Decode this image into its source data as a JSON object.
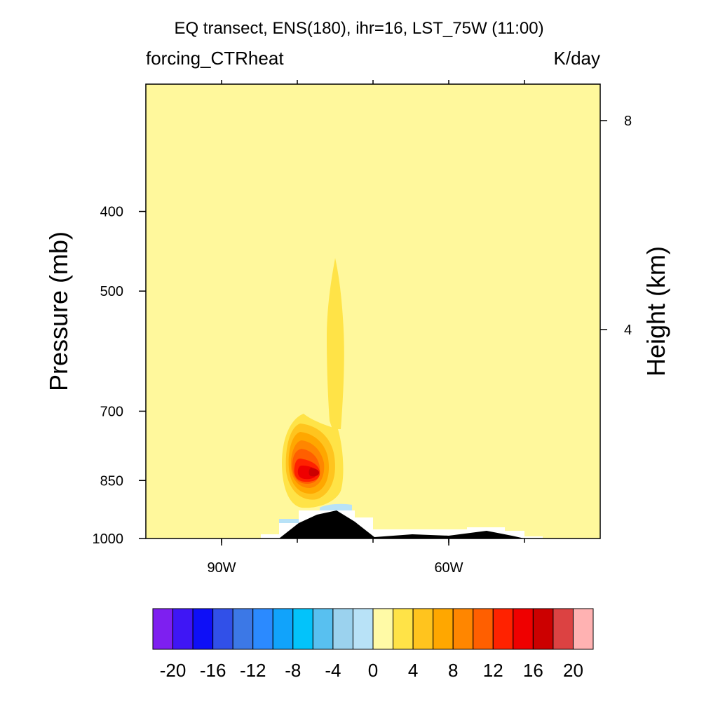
{
  "chart_data": {
    "type": "contour",
    "title": "EQ transect, ENS(180), ihr=16, LST_75W (11:00)",
    "left_subtitle": "forcing_CTRheat",
    "right_subtitle": "K/day",
    "ylabel": "Pressure (mb)",
    "ylabel_right": "Height (km)",
    "y_scale": "log",
    "ylim": [
      1000,
      280
    ],
    "xlim": [
      -100,
      -40
    ],
    "x_ticks": [
      {
        "value": -90,
        "label": "90W"
      },
      {
        "value": -60,
        "label": "60W"
      }
    ],
    "x_minor_ticks": [
      -90,
      -80,
      -70,
      -60,
      -50
    ],
    "y_ticks": [
      {
        "value": 400,
        "label": "400"
      },
      {
        "value": 500,
        "label": "500"
      },
      {
        "value": 700,
        "label": "700"
      },
      {
        "value": 850,
        "label": "850"
      },
      {
        "value": 1000,
        "label": "1000"
      }
    ],
    "y_right_ticks": [
      {
        "value": 8,
        "label": "8"
      },
      {
        "value": 4,
        "label": "4"
      }
    ],
    "background_level_color": "#fff89c",
    "colorbar": {
      "colors": [
        "#7e1ff0",
        "#3f16f5",
        "#0e0ff7",
        "#3150e8",
        "#3c78e6",
        "#2b8aff",
        "#11a3fb",
        "#03c3fa",
        "#58c0f0",
        "#9bd2ee",
        "#b8e2f7",
        "#fffaa6",
        "#ffe347",
        "#ffc41e",
        "#ffa700",
        "#ff8600",
        "#ff5f00",
        "#ff2200",
        "#ef0000",
        "#cc0000",
        "#dc4242",
        "#ffb2b2"
      ],
      "labels": [
        "-20",
        "-16",
        "-12",
        "-8",
        "-4",
        "0",
        "4",
        "8",
        "12",
        "16",
        "20"
      ]
    },
    "features": {
      "heating_max_value": 18,
      "heating_max_location": {
        "lon": -76.5,
        "pressure": 845
      },
      "terrain_color": "#000000"
    }
  }
}
